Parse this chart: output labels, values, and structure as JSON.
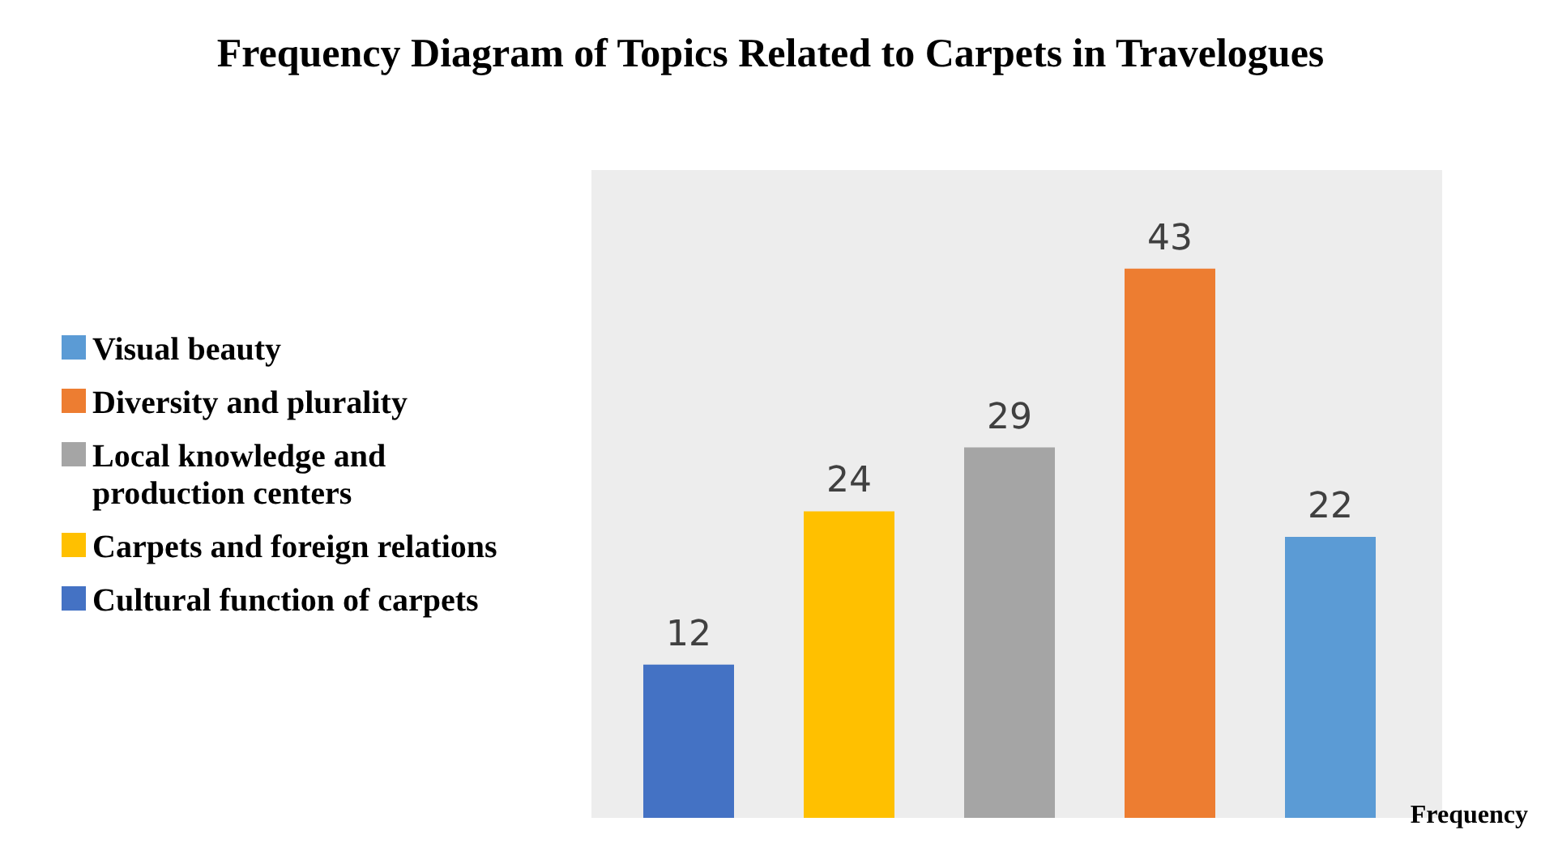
{
  "chart_data": {
    "type": "bar",
    "title": "Frequency Diagram of Topics Related to Carpets in Travelogues",
    "xlabel": "Frequency",
    "categories": [
      null,
      null,
      null,
      null,
      null
    ],
    "stacked": true,
    "series": [
      {
        "name": "Visual beauty",
        "color": "#5b9bd5",
        "values": [
          null,
          null,
          null,
          null,
          22
        ]
      },
      {
        "name": "Diversity and plurality",
        "color": "#ed7d31",
        "values": [
          null,
          null,
          null,
          43,
          null
        ]
      },
      {
        "name": "Local knowledge and production centers",
        "color": "#a5a5a5",
        "values": [
          null,
          null,
          29,
          null,
          null
        ]
      },
      {
        "name": "Carpets and foreign relations",
        "color": "#ffc000",
        "values": [
          null,
          24,
          null,
          null,
          null
        ]
      },
      {
        "name": "Cultural function of carpets",
        "color": "#4472c4",
        "values": [
          12,
          null,
          null,
          null,
          null
        ]
      }
    ],
    "data_labels": true,
    "legend": "left"
  }
}
